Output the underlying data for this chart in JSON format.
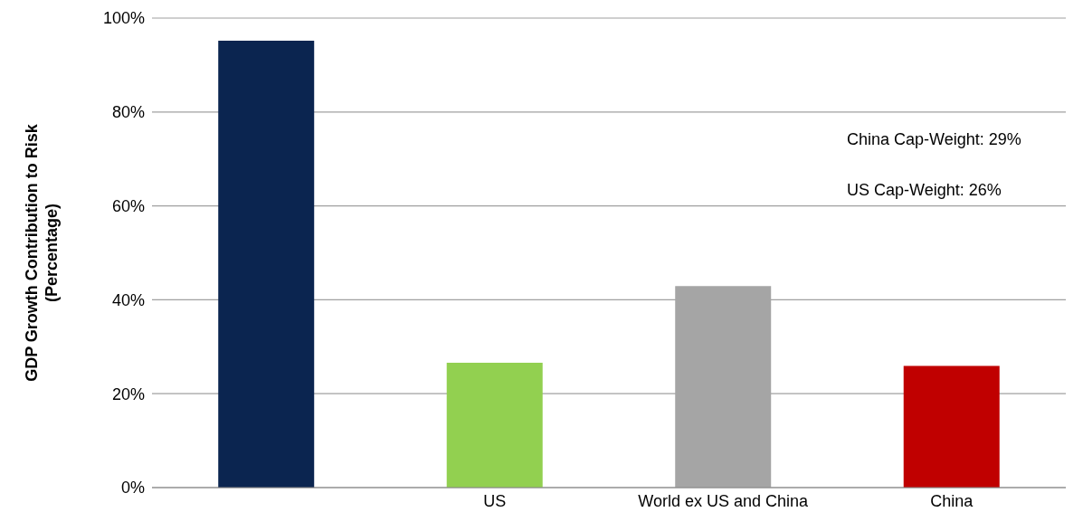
{
  "chart_data": {
    "type": "bar",
    "ylabel": "GDP Growth Contribution to Risk (Percentage)",
    "categories": [
      null,
      "US",
      "World ex US and China",
      "China"
    ],
    "values": [
      95.2,
      26.6,
      42.9,
      25.9
    ],
    "colors": [
      "#0b2550",
      "#92d050",
      "#a5a5a5",
      "#c00000"
    ],
    "ylim": [
      0,
      100
    ],
    "yticks": [
      {
        "value": 0,
        "label": "0%"
      },
      {
        "value": 20,
        "label": "20%"
      },
      {
        "value": 40,
        "label": "40%"
      },
      {
        "value": 60,
        "label": "60%"
      },
      {
        "value": 80,
        "label": "80%"
      },
      {
        "value": 100,
        "label": "100%"
      }
    ],
    "grid": "y",
    "annotations": [
      "China Cap-Weight: 29%",
      "US Cap-Weight: 26%"
    ]
  }
}
